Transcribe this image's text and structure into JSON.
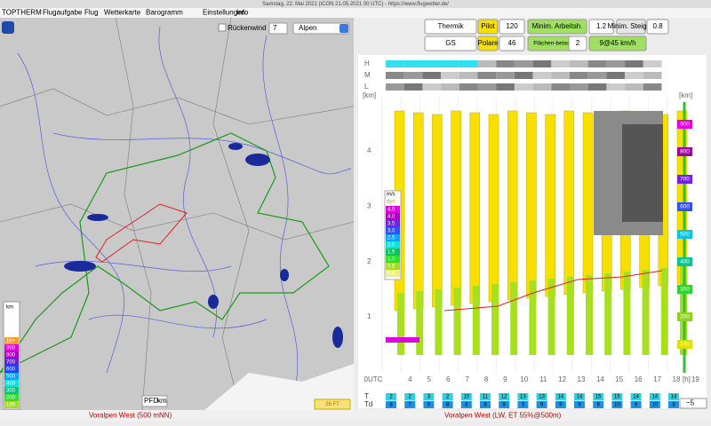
{
  "window": {
    "title": "Samstag, 22. Mai 2021 (ICON 21.05.2021 00 UTC) - https://www.flugwetter.de/"
  },
  "menu": [
    "TOPTHERM",
    "Flugaufgabe",
    "Flug",
    "Wetterkarte",
    "Barogramm",
    "Einstellungen",
    "Info"
  ],
  "map": {
    "tailwind": "Rückenwind",
    "level": "7",
    "region": "Alpen",
    "legend_title": "km",
    "legend": [
      "1k+",
      "900",
      "800",
      "700",
      "600",
      "500",
      "400",
      "300",
      "200",
      "100"
    ],
    "pfd": "PFD",
    "pfd_unit": "km",
    "badge": "26 FT"
  },
  "controls": {
    "mode": "Thermik",
    "pilot_label": "Pilot",
    "pilot": "120",
    "min_height_label": "Minim. Arbeitsh.",
    "min_height": "1.2",
    "min_climb_label": "Minim. Steigen",
    "min_climb": "0.8",
    "glider": "GS",
    "polar_label": "Polare",
    "polar": "46",
    "wing_load_label": "Flächen-belastung",
    "wing_load": "2",
    "wind": "9@45 km/h"
  },
  "chart": {
    "rows": [
      "H",
      "M",
      "L"
    ],
    "y_unit": "[km]",
    "y_ticks": [
      "1",
      "2",
      "3",
      "4"
    ],
    "x_ticks": [
      "0UTC",
      "4",
      "5",
      "6",
      "7",
      "8",
      "9",
      "10",
      "11",
      "12",
      "13",
      "14",
      "15",
      "16",
      "17",
      "18",
      "19"
    ],
    "x_unit": "[h]",
    "legend_title": "m/s",
    "legend_sub": "dyn",
    "legend": [
      "4.5",
      "4.0",
      "3.5",
      "3.0",
      "2.5",
      "2.0",
      "1.5",
      "1.0",
      "0.5",
      "0.0"
    ],
    "right_unit": "[km]",
    "right_scale": [
      "900",
      "800",
      "700",
      "600",
      "500",
      "400",
      "300",
      "200",
      "100"
    ],
    "t_label": "T",
    "td_label": "Td",
    "t": [
      "2",
      "2",
      "3",
      "2",
      "10",
      "11",
      "12",
      "13",
      "13",
      "14",
      "14",
      "15",
      "15",
      "14",
      "14",
      "14"
    ],
    "td": [
      "8",
      "7",
      "8",
      "8",
      "8",
      "8",
      "9",
      "9",
      "9",
      "9",
      "9",
      "9",
      "10",
      "9",
      "10",
      "8"
    ],
    "zoom": "~5"
  },
  "status": {
    "left": "Voralpen West (500 mNN)",
    "right": "Voralpen West (LW, ET  55%@500m)"
  }
}
